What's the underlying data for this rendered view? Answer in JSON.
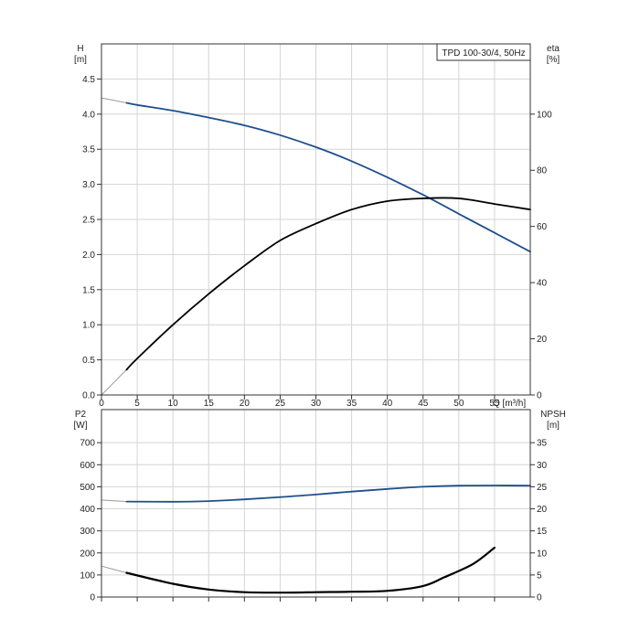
{
  "colors": {
    "pump_blue": "#1f4f8c",
    "black": "#000000",
    "extrap": "#9a9a9a",
    "grid": "#d4d4d4",
    "frame": "#333333",
    "background": "#ffffff"
  },
  "chart_data": [
    {
      "type": "line",
      "title": "TPD 100-30/4, 50Hz",
      "xlabel": "Q [m³/h]",
      "xlim": [
        0,
        60
      ],
      "x_ticks": [
        0,
        5,
        10,
        15,
        20,
        25,
        30,
        35,
        40,
        45,
        50,
        55
      ],
      "left_axis": {
        "label_top": "H",
        "label_unit": "[m]",
        "lim": [
          0,
          5.0
        ],
        "ticks": [
          "0.0",
          "0.5",
          "1.0",
          "1.5",
          "2.0",
          "2.5",
          "3.0",
          "3.5",
          "4.0",
          "4.5"
        ]
      },
      "right_axis": {
        "label_top": "eta",
        "label_unit": "[%]",
        "lim": [
          0,
          125
        ],
        "ticks": [
          "0",
          "20",
          "40",
          "60",
          "80",
          "100"
        ]
      },
      "grid": true,
      "series": [
        {
          "axis": "left",
          "color": "blue",
          "x": [
            3.5,
            5,
            10,
            15,
            20,
            25,
            30,
            35,
            40,
            45,
            50,
            55,
            60
          ],
          "y": [
            4.16,
            4.13,
            4.05,
            3.95,
            3.84,
            3.7,
            3.53,
            3.33,
            3.1,
            2.85,
            2.58,
            2.31,
            2.04
          ],
          "extrapolation": {
            "x": [
              0,
              3.5
            ],
            "y": [
              4.23,
              4.16
            ]
          }
        },
        {
          "axis": "right",
          "color": "black",
          "x": [
            3.5,
            5,
            10,
            15,
            20,
            25,
            30,
            35,
            40,
            45,
            50,
            55,
            60
          ],
          "y": [
            9,
            13,
            25,
            36,
            46,
            55,
            61,
            66,
            69,
            70,
            70,
            68,
            66
          ],
          "extrapolation": {
            "x": [
              0,
              3.5
            ],
            "y": [
              0,
              9
            ]
          }
        }
      ]
    },
    {
      "type": "line",
      "title": "",
      "xlabel": "",
      "xlim": [
        0,
        60
      ],
      "left_axis": {
        "label_top": "P2",
        "label_unit": "[W]",
        "lim": [
          0,
          850
        ],
        "ticks": [
          "0",
          "100",
          "200",
          "300",
          "400",
          "500",
          "600",
          "700"
        ]
      },
      "right_axis": {
        "label_top": "NPSH",
        "label_unit": "[m]",
        "lim": [
          0,
          42.5
        ],
        "ticks": [
          "0",
          "5",
          "10",
          "15",
          "20",
          "25",
          "30",
          "35"
        ]
      },
      "grid": true,
      "series": [
        {
          "axis": "left",
          "color": "blue",
          "x": [
            3.5,
            10,
            15,
            20,
            25,
            30,
            35,
            40,
            45,
            50,
            55,
            60
          ],
          "y": [
            433,
            432,
            435,
            443,
            453,
            465,
            478,
            490,
            500,
            505,
            506,
            505
          ],
          "extrapolation": {
            "x": [
              0,
              3.5
            ],
            "y": [
              440,
              433
            ]
          }
        },
        {
          "axis": "right",
          "color": "black",
          "x": [
            3.5,
            10,
            15,
            20,
            25,
            30,
            35,
            40,
            45,
            48,
            52,
            55
          ],
          "y": [
            5.5,
            3.0,
            1.7,
            1.1,
            1.0,
            1.1,
            1.2,
            1.4,
            2.5,
            4.5,
            7.5,
            11.2
          ],
          "extrapolation": {
            "x": [
              0,
              3.5
            ],
            "y": [
              7.0,
              5.5
            ]
          }
        }
      ]
    }
  ]
}
